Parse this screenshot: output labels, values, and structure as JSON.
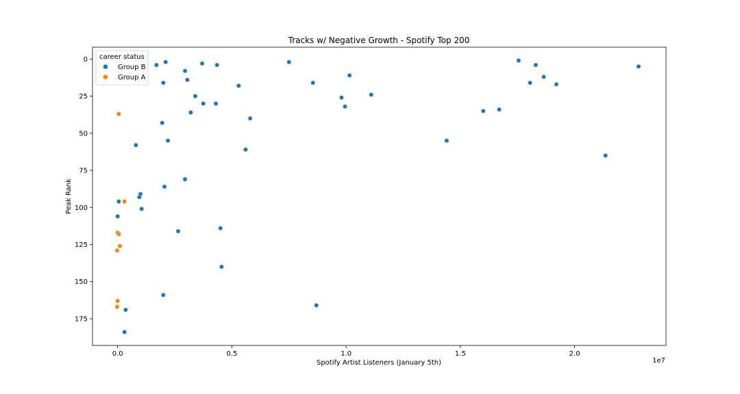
{
  "chart_data": {
    "type": "scatter",
    "title": "Tracks w/ Negative Growth - Spotify Top 200",
    "xlabel": "Spotify Artist Listeners (January 5th)",
    "ylabel": "Peak Rank",
    "x_offset_text": "1e7",
    "xlim": [
      -1100000,
      24000000
    ],
    "ylim": [
      193,
      -8
    ],
    "y_inverted": true,
    "x_ticks": [
      0,
      5000000,
      10000000,
      15000000,
      20000000
    ],
    "x_tick_labels": [
      "0.0",
      "0.5",
      "1.0",
      "1.5",
      "2.0"
    ],
    "y_ticks": [
      0,
      25,
      50,
      75,
      100,
      125,
      150,
      175
    ],
    "y_tick_labels": [
      "0",
      "25",
      "50",
      "75",
      "100",
      "125",
      "150",
      "175"
    ],
    "grid": false,
    "legend": {
      "title": "career status",
      "position": "top-left",
      "entries": [
        "Group B",
        "Group A"
      ]
    },
    "series": [
      {
        "name": "Group B",
        "color": "#1f77b4",
        "points": [
          [
            1700000,
            4
          ],
          [
            2100000,
            2
          ],
          [
            2950000,
            8
          ],
          [
            3050000,
            14
          ],
          [
            3700000,
            3
          ],
          [
            4350000,
            4
          ],
          [
            7500000,
            2
          ],
          [
            2000000,
            16
          ],
          [
            5300000,
            18
          ],
          [
            8550000,
            16
          ],
          [
            10150000,
            11
          ],
          [
            3400000,
            25
          ],
          [
            3750000,
            30
          ],
          [
            4300000,
            30
          ],
          [
            9800000,
            26
          ],
          [
            9950000,
            32
          ],
          [
            11100000,
            24
          ],
          [
            3200000,
            36
          ],
          [
            5800000,
            40
          ],
          [
            1950000,
            43
          ],
          [
            800000,
            58
          ],
          [
            2200000,
            55
          ],
          [
            5600000,
            61
          ],
          [
            14400000,
            55
          ],
          [
            16000000,
            35
          ],
          [
            16700000,
            34
          ],
          [
            17550000,
            1
          ],
          [
            18300000,
            4
          ],
          [
            18050000,
            16
          ],
          [
            18650000,
            12
          ],
          [
            19200000,
            17
          ],
          [
            22800000,
            5
          ],
          [
            21350000,
            65
          ],
          [
            2950000,
            81
          ],
          [
            2050000,
            86
          ],
          [
            1000000,
            91
          ],
          [
            950000,
            93
          ],
          [
            1050000,
            101
          ],
          [
            50000,
            96
          ],
          [
            0,
            106
          ],
          [
            2650000,
            116
          ],
          [
            4500000,
            114
          ],
          [
            4550000,
            140
          ],
          [
            2000000,
            159
          ],
          [
            8700000,
            166
          ],
          [
            350000,
            169
          ],
          [
            300000,
            184
          ]
        ]
      },
      {
        "name": "Group A",
        "color": "#ff7f0e",
        "points": [
          [
            50000,
            37
          ],
          [
            300000,
            96
          ],
          [
            0,
            117
          ],
          [
            50000,
            118
          ],
          [
            100000,
            126
          ],
          [
            -20000,
            129
          ],
          [
            0,
            163
          ],
          [
            -20000,
            167
          ]
        ]
      }
    ]
  }
}
